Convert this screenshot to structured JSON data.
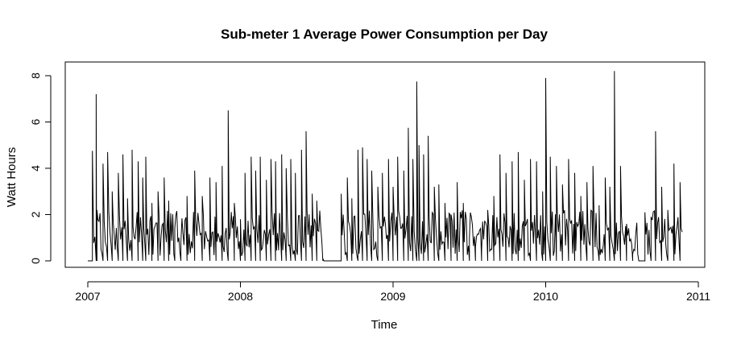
{
  "chart_data": {
    "type": "line",
    "title": "Sub-meter 1 Average Power Consumption per Day",
    "xlabel": "Time",
    "ylabel": "Watt Hours",
    "x_ticks": [
      "2007",
      "2008",
      "2009",
      "2010",
      "2011"
    ],
    "y_ticks": [
      "0",
      "2",
      "4",
      "6",
      "8"
    ],
    "xlim": [
      2007.0,
      2011.0
    ],
    "ylim": [
      0,
      8.4
    ],
    "grid": false,
    "legend": "none",
    "line_color": "#000000",
    "series": [
      {
        "x": [
          2007.0,
          2007.03,
          2007.055,
          2007.06,
          2007.1,
          2007.13,
          2007.16,
          2007.2,
          2007.23,
          2007.26,
          2007.29,
          2007.33,
          2007.36,
          2007.38,
          2007.42,
          2007.46,
          2007.5,
          2007.53,
          2007.57,
          2007.61,
          2007.65,
          2007.7,
          2007.75,
          2007.8,
          2007.84,
          2007.88,
          2007.92,
          2007.96,
          2008.0,
          2008.03,
          2008.07,
          2008.1,
          2008.13,
          2008.17,
          2008.2,
          2008.23,
          2008.27,
          2008.3,
          2008.33,
          2008.36,
          2008.4,
          2008.43,
          2008.47,
          2008.5,
          2008.54,
          2008.58,
          2008.62,
          2008.66,
          2008.7,
          2008.73,
          2008.77,
          2008.8,
          2008.83,
          2008.86,
          2008.9,
          2008.93,
          2008.97,
          2009.0,
          2009.03,
          2009.07,
          2009.1,
          2009.13,
          2009.155,
          2009.17,
          2009.2,
          2009.23,
          2009.27,
          2009.3,
          2009.34,
          2009.38,
          2009.42,
          2009.46,
          2009.5,
          2009.54,
          2009.58,
          2009.62,
          2009.66,
          2009.7,
          2009.74,
          2009.78,
          2009.82,
          2009.86,
          2009.9,
          2009.94,
          2009.98,
          2010.0,
          2010.03,
          2010.07,
          2010.11,
          2010.15,
          2010.19,
          2010.23,
          2010.27,
          2010.31,
          2010.35,
          2010.39,
          2010.42,
          2010.45,
          2010.49,
          2010.53,
          2010.57,
          2010.61,
          2010.65,
          2010.69,
          2010.72,
          2010.76,
          2010.8,
          2010.84,
          2010.88
        ],
        "y": [
          0.0,
          4.75,
          7.2,
          2.2,
          4.2,
          4.7,
          3.0,
          3.8,
          4.6,
          2.7,
          4.8,
          4.3,
          3.6,
          4.5,
          2.5,
          3.0,
          3.6,
          2.6,
          1.4,
          0.8,
          2.8,
          3.9,
          2.8,
          3.6,
          3.4,
          4.1,
          6.5,
          2.5,
          1.8,
          3.8,
          4.5,
          3.9,
          4.5,
          3.5,
          4.4,
          4.3,
          4.6,
          4.0,
          4.4,
          3.8,
          4.8,
          5.6,
          2.9,
          2.6,
          0.1,
          0.0,
          0.0,
          2.9,
          3.6,
          2.7,
          4.8,
          4.9,
          4.4,
          3.9,
          3.2,
          3.8,
          4.4,
          3.2,
          4.5,
          3.9,
          5.75,
          4.4,
          7.75,
          5.0,
          4.6,
          5.4,
          3.2,
          3.3,
          2.5,
          2.0,
          3.4,
          2.5,
          1.0,
          0.6,
          0.4,
          2.2,
          2.8,
          4.6,
          3.8,
          4.3,
          4.7,
          3.5,
          4.4,
          4.3,
          3.0,
          7.9,
          4.5,
          4.1,
          3.3,
          4.4,
          3.8,
          2.8,
          3.4,
          4.1,
          2.4,
          3.6,
          3.2,
          8.2,
          4.1,
          1.6,
          0.3,
          0.0,
          2.1,
          1.9,
          5.6,
          3.2,
          2.2,
          4.2,
          3.4
        ]
      }
    ]
  }
}
